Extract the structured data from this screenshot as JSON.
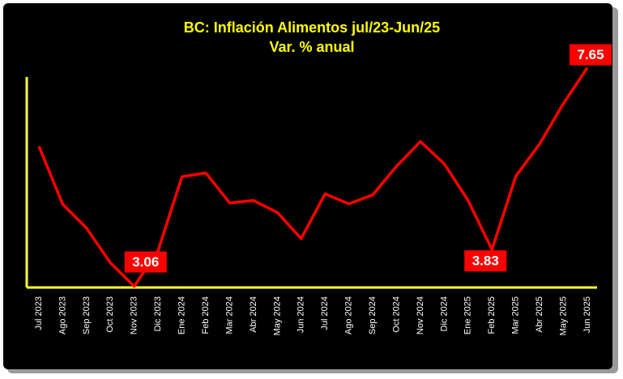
{
  "chart_data": {
    "type": "line",
    "title": "BC: Inflación Alimentos jul/23-Jun/25",
    "subtitle": "Var. % anual",
    "categories": [
      "Jul 2023",
      "Ago 2023",
      "Sep 2023",
      "Oct 2023",
      "Nov 2023",
      "Dic 2023",
      "Ene 2024",
      "Feb 2024",
      "Mar 2024",
      "Abr 2024",
      "May 2024",
      "Jun 2024",
      "Jul 2024",
      "Ago 2024",
      "Sep 2024",
      "Oct 2024",
      "Nov 2024",
      "Dic 2024",
      "Ene 2025",
      "Feb 2025",
      "Mar 2025",
      "Abr 2025",
      "May 2025",
      "Jun 2025"
    ],
    "series": [
      {
        "color": "#ff0000",
        "values": [
          6.0,
          4.78,
          4.28,
          3.55,
          3.06,
          3.81,
          5.36,
          5.44,
          4.81,
          4.86,
          4.61,
          4.06,
          5.0,
          4.79,
          4.98,
          5.58,
          6.1,
          5.63,
          4.86,
          3.83,
          5.37,
          6.05,
          6.9,
          7.65
        ]
      }
    ],
    "labeled_points": [
      4,
      19,
      23
    ],
    "ylim": [
      3,
      8
    ],
    "axis_color": "#ffff33",
    "title_color": "#ffff00"
  }
}
